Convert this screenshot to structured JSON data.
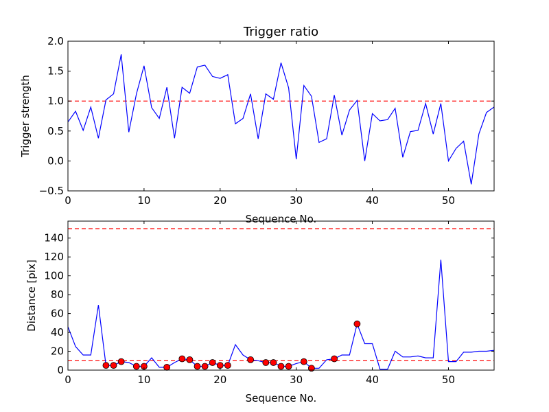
{
  "chart_data": [
    {
      "type": "line",
      "title": "Trigger ratio",
      "xlabel": "Sequence No.",
      "ylabel": "Trigger strength",
      "xlim": [
        0,
        56
      ],
      "ylim": [
        -0.5,
        2.0
      ],
      "xticks": [
        "0",
        "10",
        "20",
        "30",
        "40",
        "50"
      ],
      "yticks": [
        "−0.5",
        "0.0",
        "0.5",
        "1.0",
        "1.5",
        "2.0"
      ],
      "grid": false,
      "line_color": "#0000ff",
      "threshold": {
        "y": 1.0,
        "style": "dashed",
        "color": "#ff0000"
      },
      "series": [
        {
          "x": [
            0,
            1,
            2,
            3,
            4,
            5,
            6,
            7,
            8,
            9,
            10,
            11,
            12,
            13,
            14,
            15,
            16,
            17,
            18,
            19,
            20,
            21,
            22,
            23,
            24,
            25,
            26,
            27,
            28,
            29,
            30,
            31,
            32,
            33,
            34,
            35,
            36,
            37,
            38,
            39,
            40,
            41,
            42,
            43,
            44,
            45,
            46,
            47,
            48,
            49,
            50,
            51,
            52,
            53,
            54,
            55,
            56
          ],
          "values": [
            0.65,
            0.83,
            0.51,
            0.9,
            0.38,
            1.02,
            1.12,
            1.78,
            0.48,
            1.12,
            1.59,
            0.89,
            0.71,
            1.23,
            0.38,
            1.23,
            1.13,
            1.57,
            1.6,
            1.41,
            1.38,
            1.44,
            0.62,
            0.71,
            1.12,
            0.37,
            1.12,
            1.03,
            1.64,
            1.22,
            0.03,
            1.26,
            1.08,
            0.31,
            0.37,
            1.1,
            0.43,
            0.85,
            1.01,
            0.0,
            0.79,
            0.67,
            0.69,
            0.88,
            0.06,
            0.49,
            0.51,
            0.96,
            0.45,
            0.96,
            0.0,
            0.21,
            0.33,
            -0.39,
            0.45,
            0.81,
            0.9
          ]
        }
      ]
    },
    {
      "type": "line",
      "title": "",
      "xlabel": "Sequence No.",
      "ylabel": "Distance [pix]",
      "xlim": [
        0,
        56
      ],
      "ylim": [
        0,
        158
      ],
      "xticks": [
        "0",
        "10",
        "20",
        "30",
        "40",
        "50"
      ],
      "yticks": [
        "0",
        "20",
        "40",
        "60",
        "80",
        "100",
        "120",
        "140"
      ],
      "grid": false,
      "line_color": "#0000ff",
      "marker_color": "#ff0000",
      "thresholds": [
        {
          "y": 150,
          "style": "dashed",
          "color": "#ff0000"
        },
        {
          "y": 10,
          "style": "dashed",
          "color": "#ff0000"
        }
      ],
      "series": [
        {
          "x": [
            0,
            1,
            2,
            3,
            4,
            5,
            6,
            7,
            8,
            9,
            10,
            11,
            12,
            13,
            14,
            15,
            16,
            17,
            18,
            19,
            20,
            21,
            22,
            23,
            24,
            25,
            26,
            27,
            28,
            29,
            30,
            31,
            32,
            33,
            34,
            35,
            36,
            37,
            38,
            39,
            40,
            41,
            42,
            43,
            44,
            45,
            46,
            47,
            48,
            49,
            50,
            51,
            52,
            53,
            54,
            55,
            56
          ],
          "values": [
            46,
            25,
            16,
            16,
            69,
            5,
            5,
            9,
            8,
            4,
            4,
            13,
            3,
            3,
            8,
            12,
            11,
            4,
            4,
            8,
            5,
            5,
            27,
            16,
            11,
            10,
            8,
            8,
            4,
            4,
            7,
            9,
            2,
            2,
            11,
            12,
            16,
            16,
            49,
            28,
            28,
            1,
            1,
            20,
            14,
            14,
            15,
            13,
            13,
            117,
            9,
            9,
            19,
            19,
            20,
            20,
            21
          ],
          "marked_x": [
            5,
            6,
            7,
            9,
            10,
            13,
            15,
            16,
            17,
            18,
            19,
            20,
            21,
            24,
            26,
            27,
            28,
            29,
            31,
            32,
            35,
            38
          ]
        }
      ]
    }
  ]
}
